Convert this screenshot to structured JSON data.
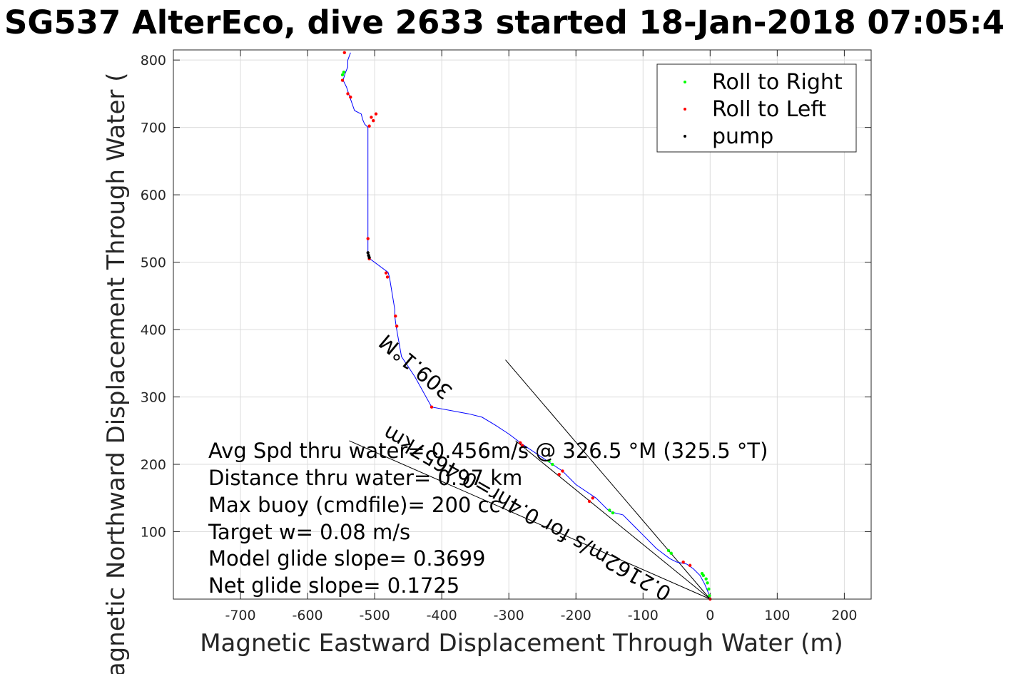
{
  "chart_data": {
    "type": "line",
    "title": "SG537 AlterEco, dive 2633 started 18-Jan-2018 07:05:4",
    "xlabel": "Magnetic Eastward Displacement Through Water (m)",
    "ylabel": "Magnetic Northward Displacement Through Water (",
    "xlim": [
      -800,
      240
    ],
    "ylim": [
      0,
      815
    ],
    "xticks": [
      -700,
      -600,
      -500,
      -400,
      -300,
      -200,
      -100,
      0,
      100,
      200
    ],
    "yticks": [
      100,
      200,
      300,
      400,
      500,
      600,
      700,
      800
    ],
    "grid": true,
    "legend_position": "top-right",
    "legend": [
      {
        "label": "Roll to Right",
        "color": "#00ff00"
      },
      {
        "label": "Roll to Left",
        "color": "#ff0000"
      },
      {
        "label": "pump",
        "color": "#000000"
      }
    ],
    "track": {
      "color": "#0000ff",
      "x": [
        0,
        -3,
        -8,
        -15,
        -25,
        -35,
        -50,
        -60,
        -80,
        -100,
        -130,
        -150,
        -170,
        -200,
        -220,
        -250,
        -280,
        -300,
        -320,
        -340,
        -360,
        -415,
        -440,
        -460,
        -468,
        -470,
        -470,
        -478,
        -480,
        -507,
        -510,
        -510,
        -510,
        -510,
        -510,
        -510,
        -510,
        -515,
        -518,
        -520,
        -530,
        -537,
        -542,
        -547,
        -544,
        -540,
        -540,
        -536
      ],
      "y": [
        0,
        10,
        22,
        35,
        45,
        52,
        55,
        60,
        75,
        95,
        125,
        130,
        150,
        170,
        190,
        210,
        230,
        245,
        258,
        270,
        275,
        285,
        330,
        360,
        405,
        420,
        430,
        478,
        485,
        505,
        510,
        515,
        535,
        600,
        650,
        690,
        700,
        705,
        712,
        720,
        725,
        745,
        760,
        770,
        780,
        790,
        800,
        811
      ]
    },
    "roll_right": {
      "x": [
        -1,
        -2,
        -4,
        -6,
        -10,
        -12,
        -62,
        -58,
        -240,
        -235,
        -150,
        -145,
        -548,
        -546
      ],
      "y": [
        5,
        15,
        24,
        30,
        35,
        38,
        72,
        68,
        205,
        200,
        132,
        128,
        778,
        782
      ]
    },
    "roll_left": {
      "x": [
        0,
        -30,
        -40,
        -175,
        -180,
        -220,
        -225,
        -280,
        -283,
        -415,
        -467,
        -469,
        -481,
        -483,
        -508,
        -505,
        -498,
        -502,
        -508,
        -510,
        -536,
        -540,
        -548,
        -545
      ],
      "y": [
        0,
        50,
        55,
        150,
        145,
        190,
        185,
        228,
        232,
        285,
        405,
        420,
        478,
        484,
        702,
        715,
        720,
        710,
        505,
        535,
        745,
        750,
        770,
        811
      ]
    },
    "pump": {
      "x": [
        -508,
        -509,
        -510
      ],
      "y": [
        507,
        510,
        514
      ]
    },
    "reference_lines": [
      {
        "x": [
          0,
          -305
        ],
        "y": [
          0,
          355
        ]
      },
      {
        "x": [
          0,
          -538
        ],
        "y": [
          0,
          235
        ]
      },
      {
        "x": [
          0,
          -290
        ],
        "y": [
          0,
          235
        ]
      }
    ],
    "annotations": [
      "Avg Spd thru water=  0.456m/s @ 326.5 °M (325.5 °T)",
      "Distance thru water=  0.97 km",
      "Max buoy (cmdfile)= 200 cc",
      "Target w= 0.08 m/s",
      "Model glide slope= 0.3699",
      "Net glide slope= 0.1725"
    ],
    "rotated_labels": [
      "0.2162m/s for 0.4hr=0.4657km",
      "309.1°M"
    ]
  }
}
